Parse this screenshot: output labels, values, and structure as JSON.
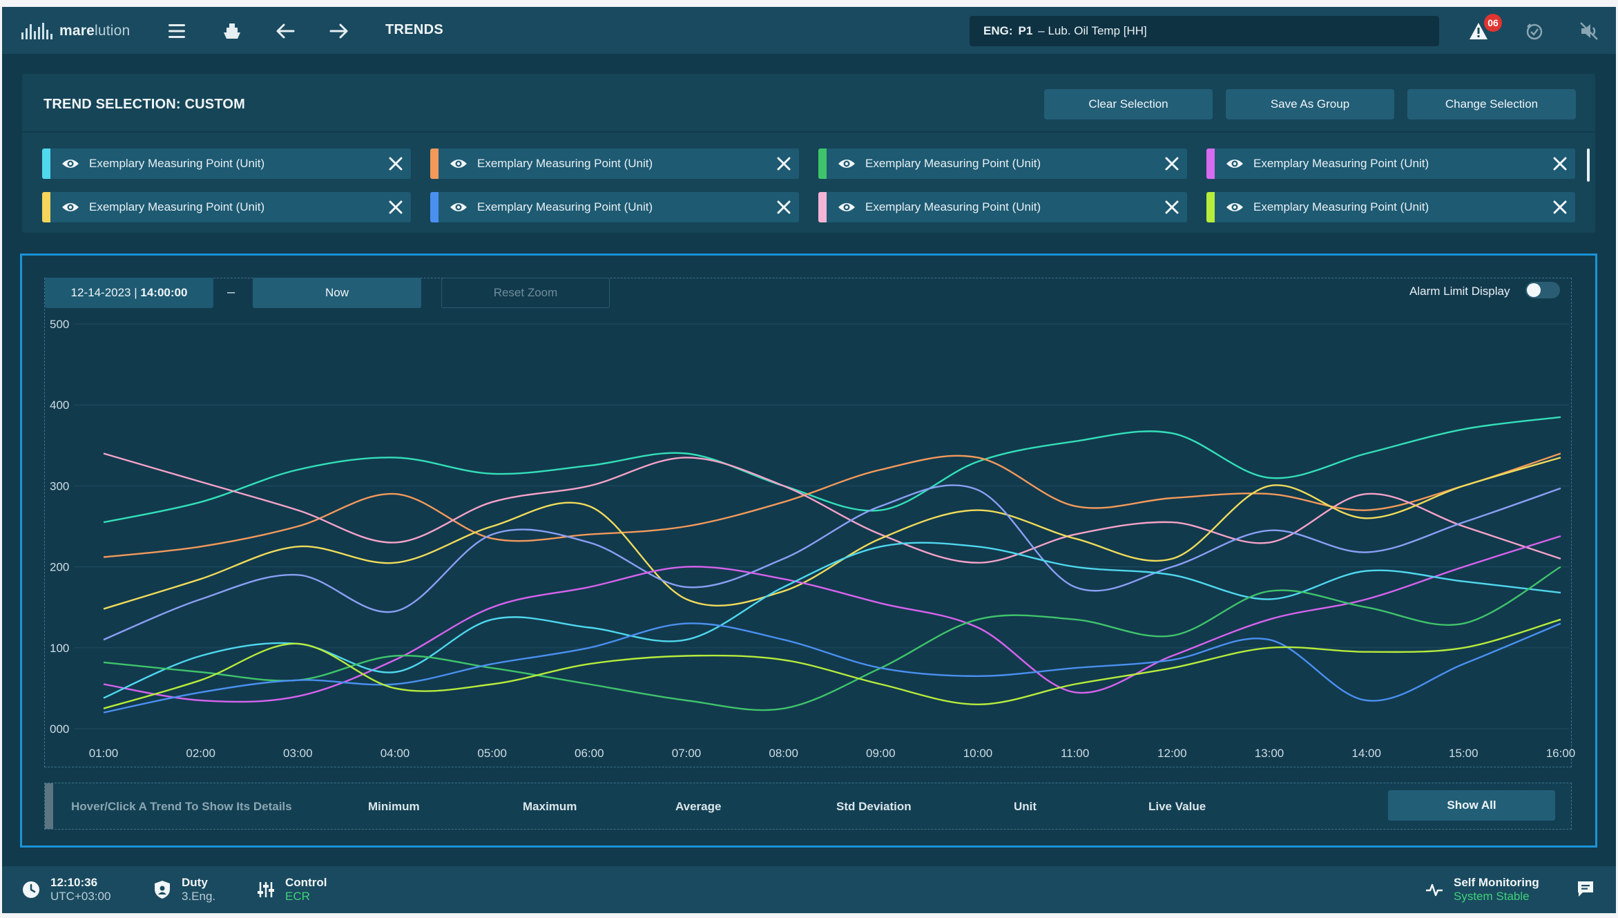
{
  "topbar": {
    "logo_bold": "mare",
    "logo_light": "lution",
    "title": "TRENDS",
    "alarm_prefix": "ENG:",
    "alarm_point": "P1",
    "alarm_text": "– Lub. Oil Temp [HH]",
    "alarm_count": "06",
    "icons": [
      "menu-icon",
      "ship-icon",
      "arrow-left-icon",
      "arrow-right-icon",
      "warning-icon",
      "acknowledge-icon",
      "mute-icon"
    ]
  },
  "selection": {
    "title": "TREND SELECTION: CUSTOM",
    "buttons": {
      "clear": "Clear Selection",
      "save": "Save As Group",
      "change": "Change Selection"
    },
    "chips": [
      {
        "label": "Exemplary Measuring Point (Unit)",
        "color": "#4fd8ee"
      },
      {
        "label": "Exemplary Measuring Point (Unit)",
        "color": "#f39a5b"
      },
      {
        "label": "Exemplary Measuring Point (Unit)",
        "color": "#3fc46b"
      },
      {
        "label": "Exemplary Measuring Point (Unit)",
        "color": "#d76bf2"
      },
      {
        "label": "Exemplary Measuring Point (Unit)",
        "color": "#f5d55a"
      },
      {
        "label": "Exemplary Measuring Point (Unit)",
        "color": "#4a90f0"
      },
      {
        "label": "Exemplary Measuring Point (Unit)",
        "color": "#f4b4d6"
      },
      {
        "label": "Exemplary Measuring Point (Unit)",
        "color": "#b7ec3c"
      }
    ]
  },
  "chart_controls": {
    "date": "12-14-2023 | ",
    "time": "14:00:00",
    "separator": "–",
    "now": "Now",
    "reset_zoom": "Reset Zoom",
    "alarm_limit_label": "Alarm Limit Display",
    "alarm_limit_on": false
  },
  "stats": {
    "hint": "Hover/Click A Trend To Show Its Details",
    "minimum": "Minimum",
    "maximum": "Maximum",
    "average": "Average",
    "std": "Std Deviation",
    "unit": "Unit",
    "live": "Live Value",
    "show_all": "Show All"
  },
  "bottombar": {
    "time": "12:10:36",
    "timezone": "UTC+03:00",
    "duty_label": "Duty",
    "duty_value": "3.Eng.",
    "control_label": "Control",
    "control_value": "ECR",
    "monitor_label": "Self Monitoring",
    "monitor_value": "System Stable"
  },
  "chart_data": {
    "type": "line",
    "x": [
      "01:00",
      "02:00",
      "03:00",
      "04:00",
      "05:00",
      "06:00",
      "07:00",
      "08:00",
      "09:00",
      "10:00",
      "11:00",
      "12:00",
      "13:00",
      "14:00",
      "15:00",
      "16:00"
    ],
    "y_ticks": [
      "000",
      "100",
      "200",
      "300",
      "400",
      "500"
    ],
    "ylim": [
      0,
      500
    ],
    "grid": true,
    "series": [
      {
        "color": "#33e0b9",
        "values": [
          255,
          280,
          320,
          335,
          315,
          325,
          340,
          300,
          270,
          330,
          355,
          365,
          310,
          340,
          370,
          385
        ]
      },
      {
        "color": "#f39a5b",
        "values": [
          212,
          225,
          250,
          290,
          235,
          240,
          250,
          280,
          320,
          335,
          275,
          285,
          290,
          270,
          300,
          340
        ]
      },
      {
        "color": "#f5a3c9",
        "values": [
          340,
          305,
          270,
          230,
          280,
          300,
          335,
          300,
          240,
          205,
          240,
          255,
          230,
          290,
          250,
          210
        ]
      },
      {
        "color": "#f0dc5a",
        "values": [
          148,
          185,
          225,
          205,
          250,
          275,
          160,
          170,
          235,
          270,
          235,
          210,
          300,
          260,
          300,
          335
        ]
      },
      {
        "color": "#8aa0f4",
        "values": [
          110,
          160,
          190,
          145,
          240,
          230,
          175,
          210,
          275,
          295,
          175,
          200,
          245,
          218,
          255,
          297
        ]
      },
      {
        "color": "#d763ee",
        "values": [
          55,
          35,
          40,
          85,
          150,
          175,
          200,
          185,
          155,
          125,
          45,
          90,
          135,
          160,
          200,
          238
        ]
      },
      {
        "color": "#4fd8ee",
        "values": [
          38,
          90,
          105,
          70,
          135,
          125,
          110,
          175,
          225,
          225,
          200,
          190,
          160,
          195,
          182,
          168
        ]
      },
      {
        "color": "#3fc46b",
        "values": [
          82,
          70,
          60,
          90,
          75,
          55,
          35,
          25,
          75,
          135,
          135,
          115,
          170,
          150,
          130,
          200
        ]
      },
      {
        "color": "#4a90f0",
        "values": [
          20,
          45,
          60,
          55,
          80,
          100,
          130,
          110,
          75,
          65,
          75,
          85,
          110,
          35,
          80,
          130
        ]
      },
      {
        "color": "#b7ec3c",
        "values": [
          25,
          60,
          105,
          50,
          55,
          80,
          90,
          85,
          55,
          30,
          55,
          75,
          100,
          95,
          100,
          135
        ]
      }
    ]
  }
}
